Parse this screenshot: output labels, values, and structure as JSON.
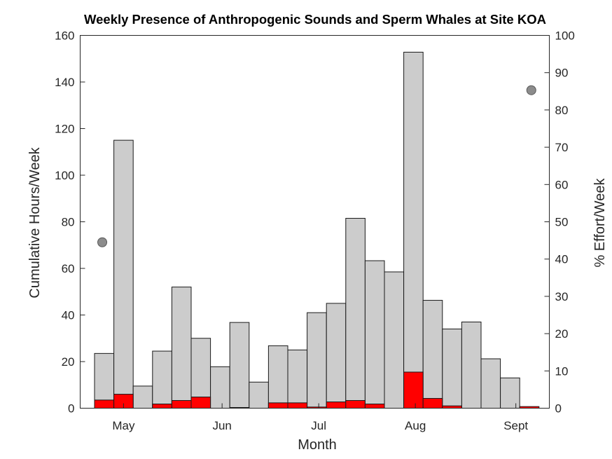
{
  "chart_data": {
    "type": "bar",
    "title": "Weekly Presence of Anthropogenic Sounds and Sperm Whales at Site KOA",
    "xlabel": "Month",
    "ylabel": "Cumulative Hours/Week",
    "ylabel_right": "% Effort/Week",
    "ylim": [
      0,
      160
    ],
    "ylim_right": [
      0,
      100
    ],
    "yticks": [
      0,
      20,
      40,
      60,
      80,
      100,
      120,
      140,
      160
    ],
    "yticks_right": [
      0,
      10,
      20,
      30,
      40,
      50,
      60,
      70,
      80,
      90,
      100
    ],
    "x_ticks": [
      {
        "label": "May",
        "week": 1.5
      },
      {
        "label": "Jun",
        "week": 6.6
      },
      {
        "label": "Jul",
        "week": 11.6
      },
      {
        "label": "Aug",
        "week": 16.6
      },
      {
        "label": "Sept",
        "week": 21.8
      }
    ],
    "series": [
      {
        "values": [
          23.5,
          115,
          9.5,
          24.5,
          52,
          30,
          17.8,
          36.8,
          11.2,
          26.8,
          25,
          41,
          45,
          81.5,
          63.3,
          58.5,
          152.8,
          46.3,
          34,
          37,
          21.2,
          13,
          0
        ]
      },
      {
        "values": [
          3.5,
          6,
          0,
          1.8,
          3.3,
          4.8,
          0,
          0.3,
          0,
          2.3,
          2.3,
          0.5,
          2.7,
          3.3,
          1.8,
          0,
          15.5,
          4.2,
          1,
          0,
          0,
          0,
          0.7
        ]
      },
      {
        "axis": "right",
        "points": [
          {
            "week": 0.4,
            "value": 44.5
          },
          {
            "week": 22.6,
            "value": 85.3
          }
        ]
      }
    ],
    "colors": {
      "gray": "#cccccc",
      "red": "#ff0000",
      "effort": "#8c8c8c"
    },
    "grid": false
  }
}
